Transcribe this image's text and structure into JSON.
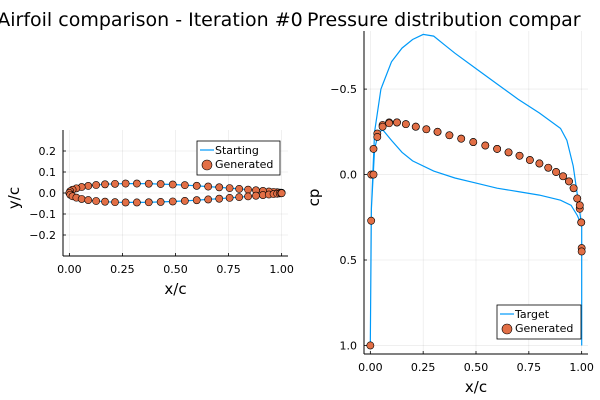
{
  "chart_data": [
    {
      "type": "scatter",
      "title": "Airfoil comparison - Iteration #0",
      "xlabel": "x/c",
      "ylabel": "y/c",
      "xlim": [
        -0.03,
        1.03
      ],
      "ylim": [
        -0.3,
        0.3
      ],
      "xticks": [
        "0.00",
        "0.25",
        "0.50",
        "0.75",
        "1.00"
      ],
      "xtick_values": [
        0,
        0.25,
        0.5,
        0.75,
        1.0
      ],
      "yticks": [
        "−0.2",
        "−0.1",
        "0.0",
        "0.1",
        "0.2"
      ],
      "ytick_values": [
        -0.2,
        -0.1,
        0,
        0.1,
        0.2
      ],
      "grid": true,
      "legend": "top-right",
      "series": [
        {
          "name": "Starting",
          "kind": "line",
          "color": "#009af9",
          "x": [
            1.0,
            0.998,
            0.991,
            0.979,
            0.962,
            0.94,
            0.912,
            0.879,
            0.842,
            0.8,
            0.755,
            0.706,
            0.654,
            0.6,
            0.544,
            0.487,
            0.43,
            0.374,
            0.318,
            0.265,
            0.215,
            0.168,
            0.126,
            0.089,
            0.058,
            0.033,
            0.015,
            0.004,
            0.0,
            0.004,
            0.015,
            0.033,
            0.058,
            0.089,
            0.126,
            0.168,
            0.215,
            0.265,
            0.318,
            0.374,
            0.43,
            0.487,
            0.544,
            0.6,
            0.654,
            0.706,
            0.755,
            0.8,
            0.842,
            0.879,
            0.912,
            0.94,
            0.962,
            0.979,
            0.991,
            0.998,
            1.0
          ],
          "y": [
            0.001,
            0.001,
            0.0018,
            0.0032,
            0.0049,
            0.0071,
            0.0098,
            0.0128,
            0.0161,
            0.0197,
            0.0233,
            0.0271,
            0.0307,
            0.0342,
            0.0375,
            0.0403,
            0.0426,
            0.0442,
            0.045,
            0.045,
            0.0436,
            0.0414,
            0.038,
            0.0337,
            0.0284,
            0.0222,
            0.0155,
            0.0082,
            0.0,
            -0.0082,
            -0.0155,
            -0.0222,
            -0.0284,
            -0.0337,
            -0.038,
            -0.0414,
            -0.0436,
            -0.045,
            -0.045,
            -0.0442,
            -0.0426,
            -0.0403,
            -0.0375,
            -0.0342,
            -0.0307,
            -0.0271,
            -0.0233,
            -0.0197,
            -0.0161,
            -0.0128,
            -0.0098,
            -0.0071,
            -0.0049,
            -0.0032,
            -0.0018,
            -0.001,
            -0.001
          ]
        },
        {
          "name": "Generated",
          "kind": "scatter",
          "color": "#e26f46",
          "x": [
            1.0,
            0.998,
            0.991,
            0.979,
            0.962,
            0.94,
            0.912,
            0.879,
            0.842,
            0.8,
            0.755,
            0.706,
            0.654,
            0.6,
            0.544,
            0.487,
            0.43,
            0.374,
            0.318,
            0.265,
            0.215,
            0.168,
            0.126,
            0.089,
            0.058,
            0.033,
            0.015,
            0.004,
            0.0,
            0.004,
            0.015,
            0.033,
            0.058,
            0.089,
            0.126,
            0.168,
            0.215,
            0.265,
            0.318,
            0.374,
            0.43,
            0.487,
            0.544,
            0.6,
            0.654,
            0.706,
            0.755,
            0.8,
            0.842,
            0.879,
            0.912,
            0.94,
            0.962,
            0.979,
            0.991,
            0.998,
            1.0
          ],
          "y": [
            0.001,
            0.001,
            0.0018,
            0.0032,
            0.0049,
            0.0071,
            0.0098,
            0.0128,
            0.0161,
            0.0197,
            0.0233,
            0.0271,
            0.0307,
            0.0342,
            0.0375,
            0.0403,
            0.0426,
            0.0442,
            0.045,
            0.045,
            0.0436,
            0.0414,
            0.038,
            0.0337,
            0.0284,
            0.0222,
            0.0155,
            0.0082,
            0.0,
            -0.0082,
            -0.0155,
            -0.0222,
            -0.0284,
            -0.0337,
            -0.038,
            -0.0414,
            -0.0436,
            -0.045,
            -0.045,
            -0.0442,
            -0.0426,
            -0.0403,
            -0.0375,
            -0.0342,
            -0.0307,
            -0.0271,
            -0.0233,
            -0.0197,
            -0.0161,
            -0.0128,
            -0.0098,
            -0.0071,
            -0.0049,
            -0.0032,
            -0.0018,
            -0.001,
            -0.001
          ]
        }
      ]
    },
    {
      "type": "line",
      "title": "Pressure distribution compar",
      "xlabel": "x/c",
      "ylabel": "cp",
      "xlim": [
        -0.03,
        1.03
      ],
      "ylim": [
        -0.84,
        1.05
      ],
      "y_flipped": true,
      "xticks": [
        "0.00",
        "0.25",
        "0.50",
        "0.75",
        "1.00"
      ],
      "xtick_values": [
        0,
        0.25,
        0.5,
        0.75,
        1.0
      ],
      "yticks": [
        "−0.5",
        "0.0",
        "0.5",
        "1.0"
      ],
      "ytick_values": [
        -0.5,
        0,
        0.5,
        1.0
      ],
      "grid": true,
      "legend": "bottom-right",
      "series": [
        {
          "name": "Target",
          "kind": "line",
          "color": "#009af9",
          "x": [
            1.0,
            1.0,
            0.98,
            0.96,
            0.93,
            0.9,
            0.8,
            0.7,
            0.6,
            0.5,
            0.4,
            0.35,
            0.3,
            0.25,
            0.2,
            0.15,
            0.1,
            0.05,
            0.02,
            0.005,
            0.0,
            0.005,
            0.02,
            0.04,
            0.06,
            0.1,
            0.15,
            0.2,
            0.3,
            0.4,
            0.5,
            0.6,
            0.7,
            0.8,
            0.9,
            0.95,
            0.98,
            1.0,
            1.0
          ],
          "y": [
            1.0,
            0.3,
            0.12,
            -0.05,
            -0.2,
            -0.27,
            -0.36,
            -0.44,
            -0.53,
            -0.62,
            -0.71,
            -0.76,
            -0.81,
            -0.82,
            -0.79,
            -0.74,
            -0.66,
            -0.5,
            -0.25,
            0.2,
            1.0,
            0.2,
            -0.15,
            -0.25,
            -0.26,
            -0.2,
            -0.13,
            -0.08,
            -0.02,
            0.02,
            0.05,
            0.08,
            0.1,
            0.12,
            0.15,
            0.18,
            0.24,
            0.3,
            1.0
          ]
        },
        {
          "name": "Generated",
          "kind": "scatter",
          "color": "#e26f46",
          "x": [
            1.0,
            0.998,
            0.991,
            0.979,
            0.962,
            0.94,
            0.912,
            0.879,
            0.842,
            0.8,
            0.755,
            0.706,
            0.654,
            0.6,
            0.544,
            0.487,
            0.43,
            0.374,
            0.318,
            0.265,
            0.215,
            0.168,
            0.126,
            0.089,
            0.058,
            0.033,
            0.015,
            0.004,
            0.0,
            0.004,
            0.015,
            0.033,
            0.058,
            0.089,
            0.126,
            0.168,
            0.215,
            0.265,
            0.318,
            0.374,
            0.43,
            0.487,
            0.544,
            0.6,
            0.654,
            0.706,
            0.755,
            0.8,
            0.842,
            0.879,
            0.912,
            0.94,
            0.962,
            0.979,
            0.991,
            0.998,
            1.0
          ],
          "y": [
            0.43,
            0.28,
            0.2,
            0.14,
            0.08,
            0.04,
            0.01,
            -0.015,
            -0.04,
            -0.065,
            -0.085,
            -0.11,
            -0.13,
            -0.15,
            -0.17,
            -0.19,
            -0.21,
            -0.23,
            -0.25,
            -0.265,
            -0.28,
            -0.295,
            -0.305,
            -0.305,
            -0.29,
            -0.24,
            -0.15,
            0.0,
            1.0,
            0.27,
            -0.0,
            -0.22,
            -0.28,
            -0.3,
            -0.305,
            -0.295,
            -0.28,
            -0.265,
            -0.25,
            -0.23,
            -0.21,
            -0.19,
            -0.17,
            -0.15,
            -0.13,
            -0.11,
            -0.085,
            -0.065,
            -0.04,
            -0.015,
            0.01,
            0.04,
            0.08,
            0.14,
            0.18,
            0.28,
            0.45
          ]
        }
      ]
    }
  ]
}
